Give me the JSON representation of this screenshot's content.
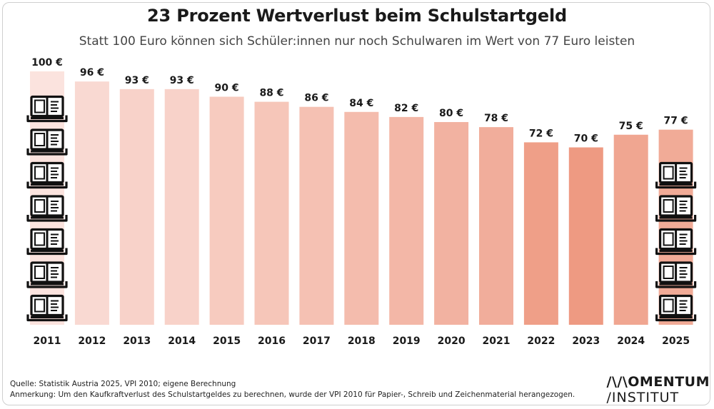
{
  "header": {
    "title": "23 Prozent Wertverlust beim Schulstartgeld",
    "subtitle": "Statt 100 Euro können sich Schüler:innen nur noch Schulwaren im Wert von 77 Euro leisten"
  },
  "chart_data": {
    "type": "bar",
    "categories": [
      "2011",
      "2012",
      "2013",
      "2014",
      "2015",
      "2016",
      "2017",
      "2018",
      "2019",
      "2020",
      "2021",
      "2022",
      "2023",
      "2024",
      "2025"
    ],
    "values": [
      100,
      96,
      93,
      93,
      90,
      88,
      86,
      84,
      82,
      80,
      78,
      72,
      70,
      75,
      77
    ],
    "value_labels": [
      "100 €",
      "96 €",
      "93 €",
      "93 €",
      "90 €",
      "88 €",
      "86 €",
      "84 €",
      "82 €",
      "80 €",
      "78 €",
      "72 €",
      "70 €",
      "75 €",
      "77 €"
    ],
    "ylim": [
      0,
      100
    ],
    "grid": false,
    "colors": {
      "lightest": "#fbe3de",
      "darkest": "#ee9a82",
      "label": "#1a1a1a"
    },
    "icon_columns": [
      {
        "category": "2011",
        "icon": "book-icon",
        "count": 7
      },
      {
        "category": "2025",
        "icon": "book-icon",
        "count": 5
      }
    ]
  },
  "footer": {
    "source": "Quelle: Statistik Austria 2025, VPI 2010; eigene Berechnung",
    "note": "Anmerkung: Um den Kaufkraftverlust des Schulstartgeldes zu berechnen, wurde der VPI 2010 für Papier-, Schreib und Zeichenmaterial herangezogen."
  },
  "logo": {
    "line1": "/\\/\\OMENTUM",
    "line2": "/INSTITUT"
  }
}
